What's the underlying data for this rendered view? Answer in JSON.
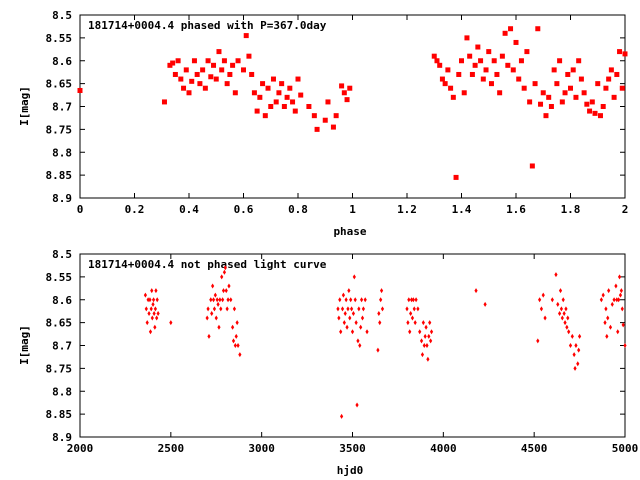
{
  "chart_data": [
    {
      "type": "scatter",
      "title": "181714+0004.4 phased with P=367.0day",
      "xlabel": "phase",
      "ylabel": "I[mag]",
      "xlim": [
        0,
        2
      ],
      "ylim": [
        8.5,
        8.9
      ],
      "y_inverted": true,
      "xticks": [
        "0",
        "0.2",
        "0.4",
        "0.6",
        "0.8",
        "1",
        "1.2",
        "1.4",
        "1.6",
        "1.8",
        "2"
      ],
      "yticks": [
        "8.5",
        "8.55",
        "8.6",
        "8.65",
        "8.7",
        "8.75",
        "8.8",
        "8.85",
        "8.9"
      ],
      "marker_color": "#ff0000",
      "points": [
        [
          0.0,
          8.665
        ],
        [
          0.31,
          8.69
        ],
        [
          0.33,
          8.61
        ],
        [
          0.34,
          8.605
        ],
        [
          0.35,
          8.63
        ],
        [
          0.36,
          8.6
        ],
        [
          0.37,
          8.64
        ],
        [
          0.38,
          8.66
        ],
        [
          0.39,
          8.62
        ],
        [
          0.4,
          8.67
        ],
        [
          0.41,
          8.645
        ],
        [
          0.42,
          8.6
        ],
        [
          0.43,
          8.63
        ],
        [
          0.44,
          8.65
        ],
        [
          0.45,
          8.62
        ],
        [
          0.46,
          8.66
        ],
        [
          0.47,
          8.6
        ],
        [
          0.48,
          8.635
        ],
        [
          0.49,
          8.61
        ],
        [
          0.5,
          8.64
        ],
        [
          0.51,
          8.58
        ],
        [
          0.52,
          8.62
        ],
        [
          0.53,
          8.6
        ],
        [
          0.54,
          8.65
        ],
        [
          0.55,
          8.63
        ],
        [
          0.56,
          8.61
        ],
        [
          0.57,
          8.67
        ],
        [
          0.58,
          8.6
        ],
        [
          0.6,
          8.62
        ],
        [
          0.61,
          8.545
        ],
        [
          0.62,
          8.59
        ],
        [
          0.63,
          8.63
        ],
        [
          0.64,
          8.67
        ],
        [
          0.65,
          8.71
        ],
        [
          0.66,
          8.68
        ],
        [
          0.67,
          8.65
        ],
        [
          0.68,
          8.72
        ],
        [
          0.69,
          8.66
        ],
        [
          0.7,
          8.7
        ],
        [
          0.71,
          8.64
        ],
        [
          0.72,
          8.69
        ],
        [
          0.73,
          8.67
        ],
        [
          0.74,
          8.65
        ],
        [
          0.75,
          8.7
        ],
        [
          0.76,
          8.68
        ],
        [
          0.77,
          8.66
        ],
        [
          0.78,
          8.69
        ],
        [
          0.79,
          8.71
        ],
        [
          0.8,
          8.64
        ],
        [
          0.81,
          8.675
        ],
        [
          0.84,
          8.7
        ],
        [
          0.86,
          8.72
        ],
        [
          0.87,
          8.75
        ],
        [
          0.9,
          8.73
        ],
        [
          0.91,
          8.69
        ],
        [
          0.93,
          8.745
        ],
        [
          0.94,
          8.72
        ],
        [
          0.96,
          8.655
        ],
        [
          0.97,
          8.67
        ],
        [
          0.98,
          8.685
        ],
        [
          0.99,
          8.66
        ],
        [
          1.3,
          8.59
        ],
        [
          1.31,
          8.6
        ],
        [
          1.32,
          8.61
        ],
        [
          1.33,
          8.64
        ],
        [
          1.34,
          8.65
        ],
        [
          1.35,
          8.62
        ],
        [
          1.36,
          8.66
        ],
        [
          1.37,
          8.68
        ],
        [
          1.38,
          8.855
        ],
        [
          1.39,
          8.63
        ],
        [
          1.4,
          8.6
        ],
        [
          1.41,
          8.67
        ],
        [
          1.42,
          8.55
        ],
        [
          1.43,
          8.59
        ],
        [
          1.44,
          8.63
        ],
        [
          1.45,
          8.61
        ],
        [
          1.46,
          8.57
        ],
        [
          1.47,
          8.6
        ],
        [
          1.48,
          8.64
        ],
        [
          1.49,
          8.62
        ],
        [
          1.5,
          8.58
        ],
        [
          1.51,
          8.65
        ],
        [
          1.52,
          8.6
        ],
        [
          1.53,
          8.63
        ],
        [
          1.54,
          8.67
        ],
        [
          1.55,
          8.59
        ],
        [
          1.56,
          8.54
        ],
        [
          1.57,
          8.61
        ],
        [
          1.58,
          8.53
        ],
        [
          1.59,
          8.62
        ],
        [
          1.6,
          8.56
        ],
        [
          1.61,
          8.64
        ],
        [
          1.62,
          8.6
        ],
        [
          1.63,
          8.66
        ],
        [
          1.64,
          8.58
        ],
        [
          1.65,
          8.69
        ],
        [
          1.66,
          8.83
        ],
        [
          1.67,
          8.65
        ],
        [
          1.68,
          8.53
        ],
        [
          1.69,
          8.695
        ],
        [
          1.7,
          8.67
        ],
        [
          1.71,
          8.72
        ],
        [
          1.72,
          8.68
        ],
        [
          1.73,
          8.7
        ],
        [
          1.74,
          8.62
        ],
        [
          1.75,
          8.65
        ],
        [
          1.76,
          8.6
        ],
        [
          1.77,
          8.69
        ],
        [
          1.78,
          8.67
        ],
        [
          1.79,
          8.63
        ],
        [
          1.8,
          8.66
        ],
        [
          1.81,
          8.62
        ],
        [
          1.82,
          8.68
        ],
        [
          1.83,
          8.6
        ],
        [
          1.84,
          8.64
        ],
        [
          1.85,
          8.67
        ],
        [
          1.86,
          8.695
        ],
        [
          1.87,
          8.71
        ],
        [
          1.88,
          8.69
        ],
        [
          1.89,
          8.715
        ],
        [
          1.9,
          8.65
        ],
        [
          1.91,
          8.72
        ],
        [
          1.92,
          8.7
        ],
        [
          1.93,
          8.66
        ],
        [
          1.94,
          8.64
        ],
        [
          1.95,
          8.62
        ],
        [
          1.96,
          8.68
        ],
        [
          1.97,
          8.63
        ],
        [
          1.98,
          8.58
        ],
        [
          1.99,
          8.66
        ],
        [
          2.0,
          8.585
        ]
      ]
    },
    {
      "type": "scatter",
      "title": "181714+0004.4 not phased light curve",
      "xlabel": "hjd0",
      "ylabel": "I[mag]",
      "xlim": [
        2000,
        5000
      ],
      "ylim": [
        8.5,
        8.9
      ],
      "y_inverted": true,
      "xticks": [
        "2000",
        "2500",
        "3000",
        "3500",
        "4000",
        "4500",
        "5000"
      ],
      "yticks": [
        "8.5",
        "8.55",
        "8.6",
        "8.65",
        "8.7",
        "8.75",
        "8.8",
        "8.85",
        "8.9"
      ],
      "marker_color": "#ff0000",
      "points": [
        [
          2360,
          8.59
        ],
        [
          2365,
          8.62
        ],
        [
          2370,
          8.65
        ],
        [
          2375,
          8.6
        ],
        [
          2380,
          8.63
        ],
        [
          2385,
          8.6
        ],
        [
          2388,
          8.67
        ],
        [
          2392,
          8.62
        ],
        [
          2395,
          8.58
        ],
        [
          2398,
          8.64
        ],
        [
          2402,
          8.61
        ],
        [
          2405,
          8.6
        ],
        [
          2408,
          8.63
        ],
        [
          2412,
          8.66
        ],
        [
          2415,
          8.62
        ],
        [
          2418,
          8.58
        ],
        [
          2422,
          8.64
        ],
        [
          2425,
          8.6
        ],
        [
          2430,
          8.63
        ],
        [
          2500,
          8.65
        ],
        [
          2700,
          8.64
        ],
        [
          2705,
          8.62
        ],
        [
          2710,
          8.68
        ],
        [
          2720,
          8.6
        ],
        [
          2725,
          8.63
        ],
        [
          2730,
          8.57
        ],
        [
          2735,
          8.6
        ],
        [
          2740,
          8.62
        ],
        [
          2745,
          8.59
        ],
        [
          2750,
          8.64
        ],
        [
          2755,
          8.6
        ],
        [
          2760,
          8.61
        ],
        [
          2765,
          8.66
        ],
        [
          2770,
          8.6
        ],
        [
          2775,
          8.62
        ],
        [
          2780,
          8.55
        ],
        [
          2785,
          8.6
        ],
        [
          2790,
          8.58
        ],
        [
          2795,
          8.54
        ],
        [
          2800,
          8.53
        ],
        [
          2805,
          8.58
        ],
        [
          2810,
          8.62
        ],
        [
          2815,
          8.6
        ],
        [
          2820,
          8.57
        ],
        [
          2830,
          8.6
        ],
        [
          2840,
          8.66
        ],
        [
          2845,
          8.69
        ],
        [
          2850,
          8.62
        ],
        [
          2855,
          8.7
        ],
        [
          2860,
          8.68
        ],
        [
          2865,
          8.65
        ],
        [
          2870,
          8.7
        ],
        [
          2880,
          8.72
        ],
        [
          3420,
          8.62
        ],
        [
          3425,
          8.64
        ],
        [
          3430,
          8.6
        ],
        [
          3435,
          8.67
        ],
        [
          3440,
          8.855
        ],
        [
          3445,
          8.62
        ],
        [
          3450,
          8.59
        ],
        [
          3455,
          8.65
        ],
        [
          3460,
          8.63
        ],
        [
          3465,
          8.6
        ],
        [
          3470,
          8.66
        ],
        [
          3475,
          8.62
        ],
        [
          3480,
          8.58
        ],
        [
          3485,
          8.64
        ],
        [
          3490,
          8.6
        ],
        [
          3495,
          8.62
        ],
        [
          3500,
          8.67
        ],
        [
          3505,
          8.63
        ],
        [
          3510,
          8.55
        ],
        [
          3515,
          8.6
        ],
        [
          3520,
          8.65
        ],
        [
          3525,
          8.83
        ],
        [
          3530,
          8.69
        ],
        [
          3535,
          8.62
        ],
        [
          3540,
          8.7
        ],
        [
          3545,
          8.66
        ],
        [
          3550,
          8.6
        ],
        [
          3555,
          8.64
        ],
        [
          3560,
          8.62
        ],
        [
          3570,
          8.6
        ],
        [
          3580,
          8.67
        ],
        [
          3640,
          8.71
        ],
        [
          3645,
          8.63
        ],
        [
          3650,
          8.65
        ],
        [
          3655,
          8.6
        ],
        [
          3660,
          8.58
        ],
        [
          3665,
          8.62
        ],
        [
          3800,
          8.62
        ],
        [
          3805,
          8.65
        ],
        [
          3810,
          8.6
        ],
        [
          3815,
          8.67
        ],
        [
          3820,
          8.63
        ],
        [
          3825,
          8.6
        ],
        [
          3830,
          8.64
        ],
        [
          3835,
          8.6
        ],
        [
          3840,
          8.62
        ],
        [
          3845,
          8.65
        ],
        [
          3850,
          8.6
        ],
        [
          3860,
          8.62
        ],
        [
          3870,
          8.67
        ],
        [
          3880,
          8.69
        ],
        [
          3885,
          8.72
        ],
        [
          3890,
          8.65
        ],
        [
          3895,
          8.7
        ],
        [
          3900,
          8.68
        ],
        [
          3905,
          8.66
        ],
        [
          3910,
          8.7
        ],
        [
          3915,
          8.73
        ],
        [
          3920,
          8.68
        ],
        [
          3925,
          8.65
        ],
        [
          3930,
          8.69
        ],
        [
          3935,
          8.67
        ],
        [
          4180,
          8.58
        ],
        [
          4230,
          8.61
        ],
        [
          4520,
          8.69
        ],
        [
          4530,
          8.6
        ],
        [
          4540,
          8.62
        ],
        [
          4550,
          8.59
        ],
        [
          4560,
          8.64
        ],
        [
          4600,
          8.6
        ],
        [
          4620,
          8.545
        ],
        [
          4630,
          8.61
        ],
        [
          4640,
          8.63
        ],
        [
          4645,
          8.58
        ],
        [
          4650,
          8.62
        ],
        [
          4655,
          8.64
        ],
        [
          4660,
          8.6
        ],
        [
          4665,
          8.63
        ],
        [
          4670,
          8.65
        ],
        [
          4675,
          8.62
        ],
        [
          4680,
          8.66
        ],
        [
          4685,
          8.64
        ],
        [
          4690,
          8.67
        ],
        [
          4700,
          8.7
        ],
        [
          4710,
          8.68
        ],
        [
          4720,
          8.72
        ],
        [
          4725,
          8.75
        ],
        [
          4730,
          8.7
        ],
        [
          4740,
          8.74
        ],
        [
          4745,
          8.71
        ],
        [
          4750,
          8.68
        ],
        [
          4870,
          8.6
        ],
        [
          4880,
          8.59
        ],
        [
          4890,
          8.65
        ],
        [
          4895,
          8.62
        ],
        [
          4900,
          8.68
        ],
        [
          4905,
          8.64
        ],
        [
          4910,
          8.58
        ],
        [
          4920,
          8.66
        ],
        [
          4930,
          8.61
        ],
        [
          4940,
          8.6
        ],
        [
          4950,
          8.57
        ],
        [
          4955,
          8.6
        ],
        [
          4960,
          8.67
        ],
        [
          4965,
          8.6
        ],
        [
          4970,
          8.55
        ],
        [
          4975,
          8.59
        ],
        [
          4980,
          8.58
        ],
        [
          4985,
          8.62
        ],
        [
          4990,
          8.655
        ],
        [
          5000,
          8.7
        ]
      ]
    }
  ]
}
